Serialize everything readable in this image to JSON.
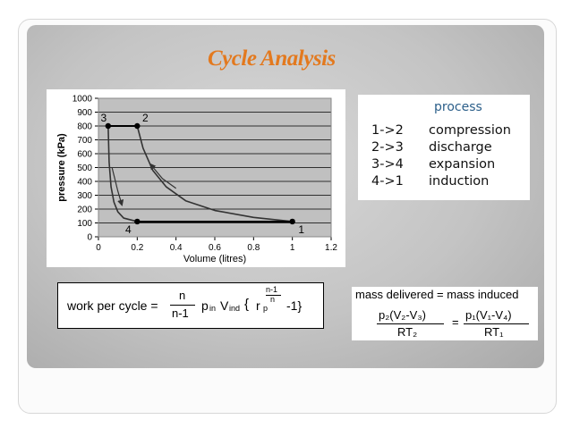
{
  "slide": {
    "title": "Cycle Analysis"
  },
  "chart_data": {
    "type": "line",
    "xlabel": "Volume (litres)",
    "ylabel": "pressure (kPa)",
    "xlim": [
      0,
      1.2
    ],
    "ylim": [
      0,
      1000
    ],
    "x_ticks": [
      "0",
      "0.2",
      "0.4",
      "0.6",
      "0.8",
      "1",
      "1.2"
    ],
    "y_ticks": [
      "0",
      "100",
      "200",
      "300",
      "400",
      "500",
      "600",
      "700",
      "800",
      "900",
      "1000"
    ],
    "grid": true,
    "series": [
      {
        "x": [
          1.0,
          0.8,
          0.6,
          0.45,
          0.35,
          0.28,
          0.23,
          0.2
        ],
        "y": [
          110,
          140,
          190,
          260,
          360,
          480,
          640,
          800
        ]
      },
      {
        "x": [
          0.2,
          0.05
        ],
        "y": [
          800,
          800
        ]
      },
      {
        "x": [
          0.05,
          0.055,
          0.065,
          0.08,
          0.1,
          0.13,
          0.2
        ],
        "y": [
          800,
          540,
          360,
          250,
          180,
          135,
          110
        ]
      },
      {
        "x": [
          0.2,
          1.0
        ],
        "y": [
          110,
          110
        ]
      }
    ],
    "points": [
      {
        "label": "1",
        "x": 1.0,
        "y": 110
      },
      {
        "label": "2",
        "x": 0.2,
        "y": 800
      },
      {
        "label": "3",
        "x": 0.05,
        "y": 800
      },
      {
        "label": "4",
        "x": 0.2,
        "y": 110
      }
    ],
    "arrows": [
      {
        "x": [
          0.07,
          0.1,
          0.12
        ],
        "y": [
          500,
          330,
          235
        ]
      },
      {
        "x": [
          0.4,
          0.33,
          0.27
        ],
        "y": [
          350,
          420,
          520
        ]
      }
    ]
  },
  "legend": {
    "header": "process",
    "rows": [
      {
        "stage": "1->2",
        "process": "compression"
      },
      {
        "stage": "2->3",
        "process": "discharge"
      },
      {
        "stage": "3->4",
        "process": "expansion"
      },
      {
        "stage": "4->1",
        "process": "induction"
      }
    ]
  },
  "formula": {
    "lead": "work per cycle =",
    "frac_num": "n",
    "frac_den": "n-1",
    "p_in": "p",
    "p_in_sub": "in",
    "v_ind": "V",
    "v_ind_sub": "ind",
    "brace_open": "{",
    "rp": "r",
    "rp_sub": "p",
    "exp_num": "n-1",
    "exp_den": "n",
    "tail": "-1}"
  },
  "mass": {
    "header": "mass delivered = mass induced",
    "left_num": "p₂(V₂-V₃)",
    "left_den": "RT₂",
    "equals": "=",
    "right_num": "p₁(V₁-V₄)",
    "right_den": "RT₁"
  }
}
